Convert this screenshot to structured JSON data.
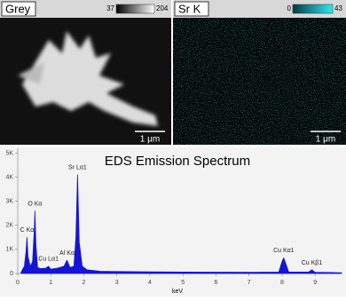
{
  "panels": [
    {
      "label": "Grey",
      "colorbar": {
        "min": 37,
        "max": 204
      },
      "scale_bar": "1 μm"
    },
    {
      "label": "Sr K",
      "colorbar": {
        "min": 0,
        "max": 43
      },
      "scale_bar": "1 μm"
    }
  ],
  "chart_data": {
    "type": "area",
    "title": "EDS Emission Spectrum",
    "x_label": "keV",
    "x": [
      0.1,
      0.2,
      0.25,
      0.28,
      0.31,
      0.38,
      0.45,
      0.5,
      0.52,
      0.55,
      0.6,
      0.7,
      0.85,
      0.93,
      1.0,
      1.2,
      1.4,
      1.49,
      1.58,
      1.7,
      1.76,
      1.81,
      1.86,
      1.95,
      2.1,
      2.5,
      3,
      4,
      5,
      6,
      7,
      7.9,
      8.0,
      8.05,
      8.1,
      8.2,
      8.8,
      8.9,
      9.0,
      9.5,
      9.8
    ],
    "series": [
      {
        "color": "#1414d8",
        "values": [
          50,
          300,
          900,
          1500,
          700,
          300,
          500,
          1800,
          2600,
          1200,
          250,
          200,
          220,
          300,
          180,
          220,
          300,
          550,
          250,
          300,
          1500,
          4100,
          1300,
          300,
          150,
          90,
          80,
          70,
          60,
          55,
          50,
          60,
          500,
          650,
          450,
          60,
          60,
          150,
          50,
          40,
          30
        ]
      }
    ],
    "peaks": [
      {
        "label": "C Kα",
        "x": 0.28
      },
      {
        "label": "O Kα",
        "x": 0.52
      },
      {
        "label": "Cu Lα1",
        "x": 0.93
      },
      {
        "label": "Al Kα",
        "x": 1.49
      },
      {
        "label": "Sr Lα1",
        "x": 1.81
      },
      {
        "label": "Cu Kα1",
        "x": 8.05
      },
      {
        "label": "Cu Kβ1",
        "x": 8.9
      }
    ],
    "xlim": [
      0,
      9.8
    ],
    "ylim": [
      0,
      5200
    ],
    "xticks": [
      0,
      1,
      2,
      3,
      4,
      5,
      6,
      7,
      8,
      9
    ],
    "yticks": [
      0,
      {
        "value": 1000,
        "label": "1K"
      },
      {
        "value": 2000,
        "label": "2K"
      },
      {
        "value": 3000,
        "label": "3K"
      },
      {
        "value": 4000,
        "label": "4K"
      },
      {
        "value": 5000,
        "label": "5K"
      }
    ]
  }
}
